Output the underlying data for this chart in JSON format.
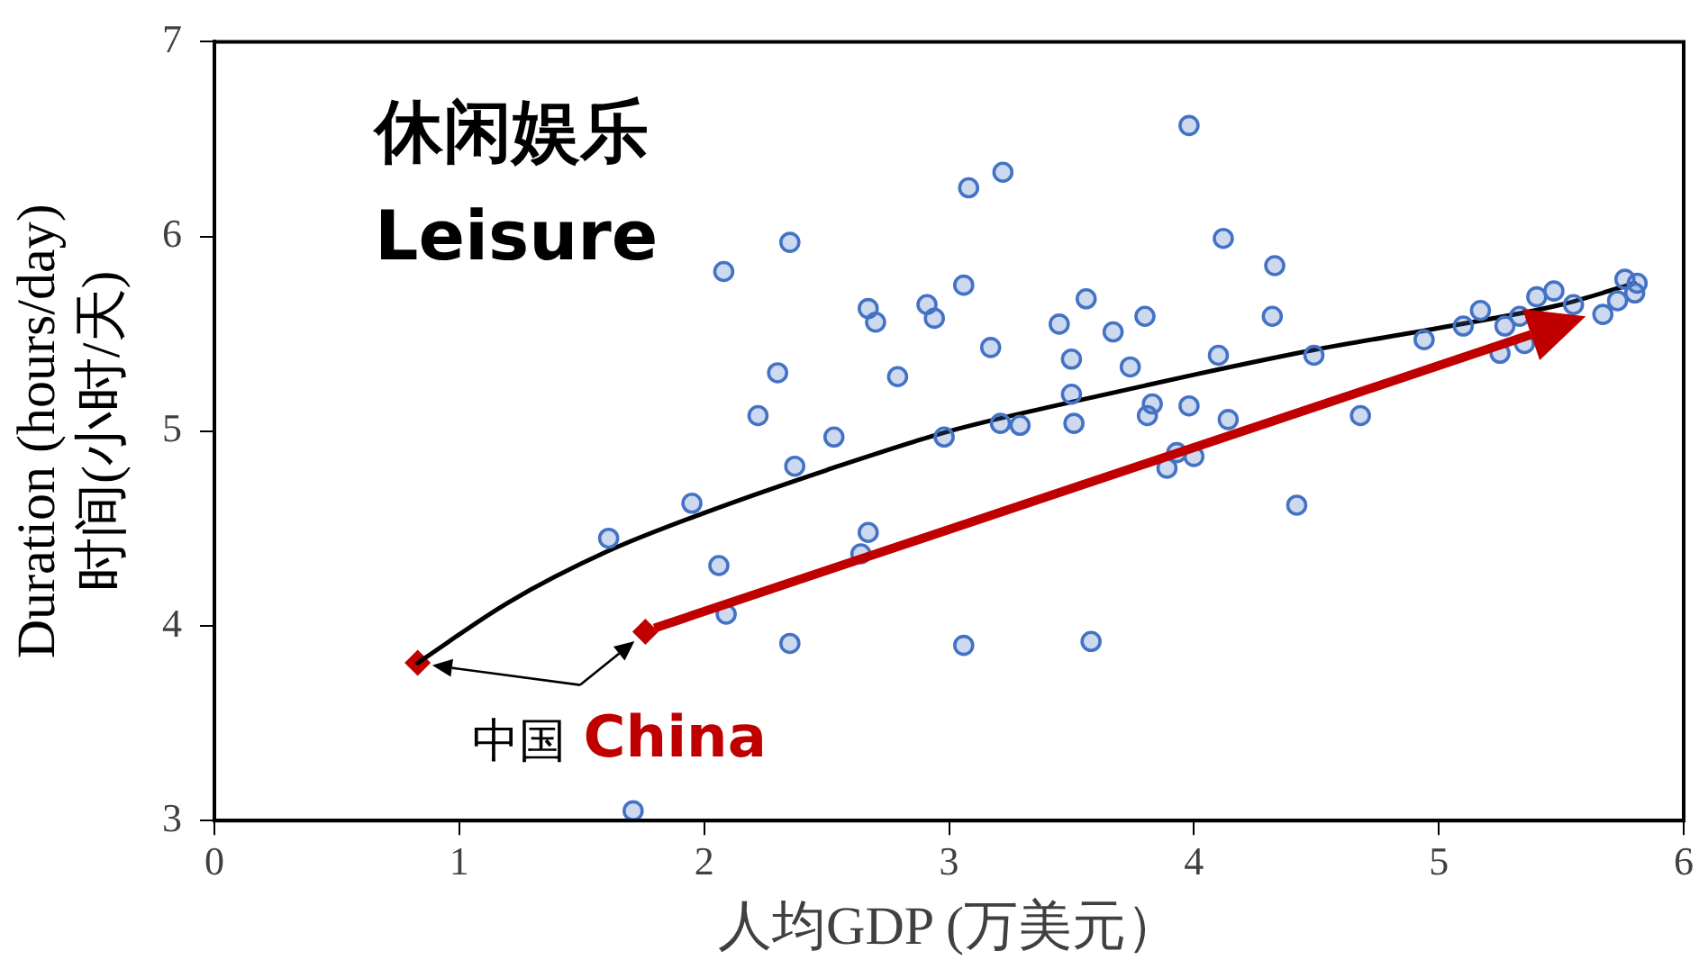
{
  "chart_data": {
    "type": "scatter",
    "title": "休闲娱乐",
    "subtitle": "Leisure",
    "xlabel": "人均GDP (万美元）",
    "ylabel": "Duration (hours/day)\n时间(小时/天)",
    "xlim": [
      0,
      6
    ],
    "xticks": [
      0,
      1,
      2,
      3,
      4,
      5,
      6
    ],
    "ylim": [
      3,
      7
    ],
    "yticks": [
      3,
      4,
      5,
      6,
      7
    ],
    "grid": false,
    "legend": false,
    "series": [
      {
        "type": "scatter",
        "color": "#4472c4",
        "marker": "circle",
        "x": [
          1.61,
          1.95,
          2.06,
          2.09,
          2.08,
          2.3,
          2.22,
          2.37,
          2.35,
          2.35,
          2.53,
          2.67,
          2.64,
          2.67,
          2.7,
          2.79,
          2.91,
          2.94,
          2.98,
          3.06,
          3.08,
          3.06,
          3.17,
          3.22,
          3.21,
          3.29,
          3.45,
          3.5,
          3.5,
          3.51,
          3.56,
          3.58,
          3.67,
          3.74,
          3.81,
          3.83,
          3.8,
          3.89,
          3.93,
          3.98,
          3.98,
          4.0,
          4.12,
          4.1,
          4.14,
          4.33,
          4.32,
          4.42,
          4.49,
          4.68,
          4.94,
          5.1,
          5.17,
          5.25,
          5.27,
          5.33,
          5.35,
          5.4,
          5.47,
          5.55,
          5.67,
          5.73,
          5.76,
          5.8,
          5.81,
          1.71
        ],
        "values": [
          4.45,
          4.63,
          4.31,
          4.06,
          5.82,
          5.3,
          5.08,
          4.82,
          5.97,
          3.91,
          4.97,
          4.48,
          4.37,
          5.63,
          5.56,
          5.28,
          5.65,
          5.58,
          4.97,
          5.75,
          6.25,
          3.9,
          5.43,
          6.33,
          5.04,
          5.03,
          5.55,
          5.37,
          5.19,
          5.04,
          5.68,
          3.92,
          5.51,
          5.33,
          5.08,
          5.14,
          5.59,
          4.81,
          4.89,
          6.57,
          5.13,
          4.87,
          5.99,
          5.39,
          5.06,
          5.85,
          5.59,
          4.62,
          5.39,
          5.08,
          5.47,
          5.54,
          5.62,
          5.4,
          5.54,
          5.59,
          5.45,
          5.69,
          5.72,
          5.65,
          5.6,
          5.67,
          5.78,
          5.71,
          5.76,
          3.05
        ]
      },
      {
        "type": "line",
        "color": "#000000",
        "marker": "none",
        "x": [
          0.83,
          1.2,
          1.6,
          2.0,
          2.5,
          3.0,
          3.5,
          4.0,
          4.5,
          5.0,
          5.5,
          5.8
        ],
        "values": [
          3.81,
          4.12,
          4.38,
          4.58,
          4.8,
          5.0,
          5.15,
          5.29,
          5.42,
          5.53,
          5.65,
          5.76
        ]
      },
      {
        "type": "scatter",
        "color": "#c00000",
        "marker": "diamond",
        "x": [
          0.83,
          1.76
        ],
        "values": [
          3.81,
          3.97
        ]
      }
    ],
    "annotations": [
      {
        "text": "中国",
        "x": 0.83,
        "y": 3.81
      },
      "China"
    ]
  }
}
